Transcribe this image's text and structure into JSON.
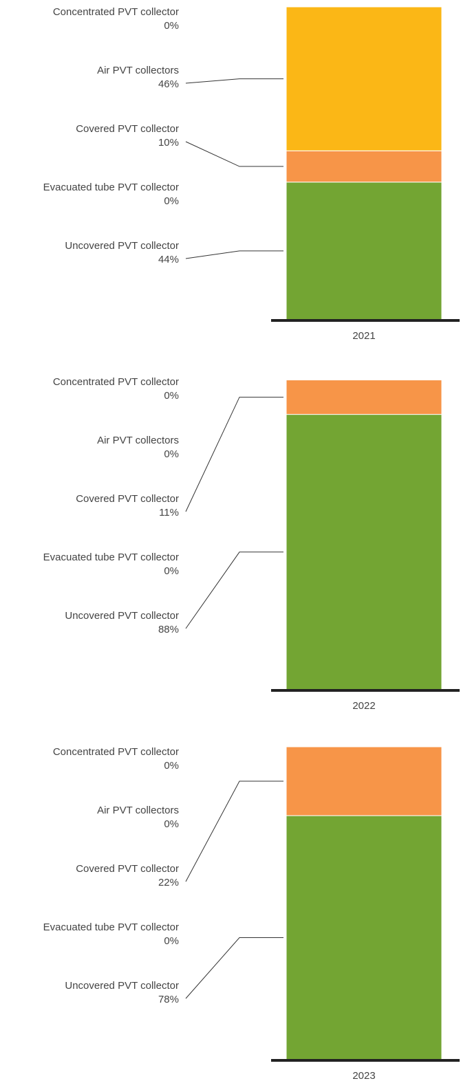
{
  "chart_data": [
    {
      "type": "stacked-bar",
      "categories": [
        "2021"
      ],
      "ylim": [
        0,
        100
      ],
      "series": [
        {
          "name": "Uncovered PVT collector",
          "color": "#73a533",
          "values": [
            44
          ],
          "value_labels": [
            "44%"
          ]
        },
        {
          "name": "Evacuated tube PVT collector",
          "color": "#2f7fb8",
          "values": [
            0
          ],
          "value_labels": [
            "0%"
          ]
        },
        {
          "name": "Covered PVT collector",
          "color": "#f79548",
          "values": [
            10
          ],
          "value_labels": [
            "10%"
          ]
        },
        {
          "name": "Air PVT collectors",
          "color": "#fbb716",
          "values": [
            46
          ],
          "value_labels": [
            "46%"
          ]
        },
        {
          "name": "Concentrated PVT collector",
          "color": "#9b59b6",
          "values": [
            0
          ],
          "value_labels": [
            "0%"
          ]
        }
      ]
    },
    {
      "type": "stacked-bar",
      "categories": [
        "2022"
      ],
      "ylim": [
        0,
        100
      ],
      "series": [
        {
          "name": "Uncovered PVT collector",
          "color": "#73a533",
          "values": [
            88
          ],
          "value_labels": [
            "88%"
          ]
        },
        {
          "name": "Evacuated tube PVT collector",
          "color": "#2f7fb8",
          "values": [
            0
          ],
          "value_labels": [
            "0%"
          ]
        },
        {
          "name": "Covered PVT collector",
          "color": "#f79548",
          "values": [
            11
          ],
          "value_labels": [
            "11%"
          ]
        },
        {
          "name": "Air PVT collectors",
          "color": "#fbb716",
          "values": [
            0
          ],
          "value_labels": [
            "0%"
          ]
        },
        {
          "name": "Concentrated PVT collector",
          "color": "#9b59b6",
          "values": [
            0
          ],
          "value_labels": [
            "0%"
          ]
        }
      ]
    },
    {
      "type": "stacked-bar",
      "categories": [
        "2023"
      ],
      "ylim": [
        0,
        100
      ],
      "series": [
        {
          "name": "Uncovered PVT collector",
          "color": "#73a533",
          "values": [
            78
          ],
          "value_labels": [
            "78%"
          ]
        },
        {
          "name": "Evacuated tube PVT collector",
          "color": "#2f7fb8",
          "values": [
            0
          ],
          "value_labels": [
            "0%"
          ]
        },
        {
          "name": "Covered PVT collector",
          "color": "#f79548",
          "values": [
            22
          ],
          "value_labels": [
            "22%"
          ]
        },
        {
          "name": "Air PVT collectors",
          "color": "#fbb716",
          "values": [
            0
          ],
          "value_labels": [
            "0%"
          ]
        },
        {
          "name": "Concentrated PVT collector",
          "color": "#9b59b6",
          "values": [
            0
          ],
          "value_labels": [
            "0%"
          ]
        }
      ]
    }
  ]
}
